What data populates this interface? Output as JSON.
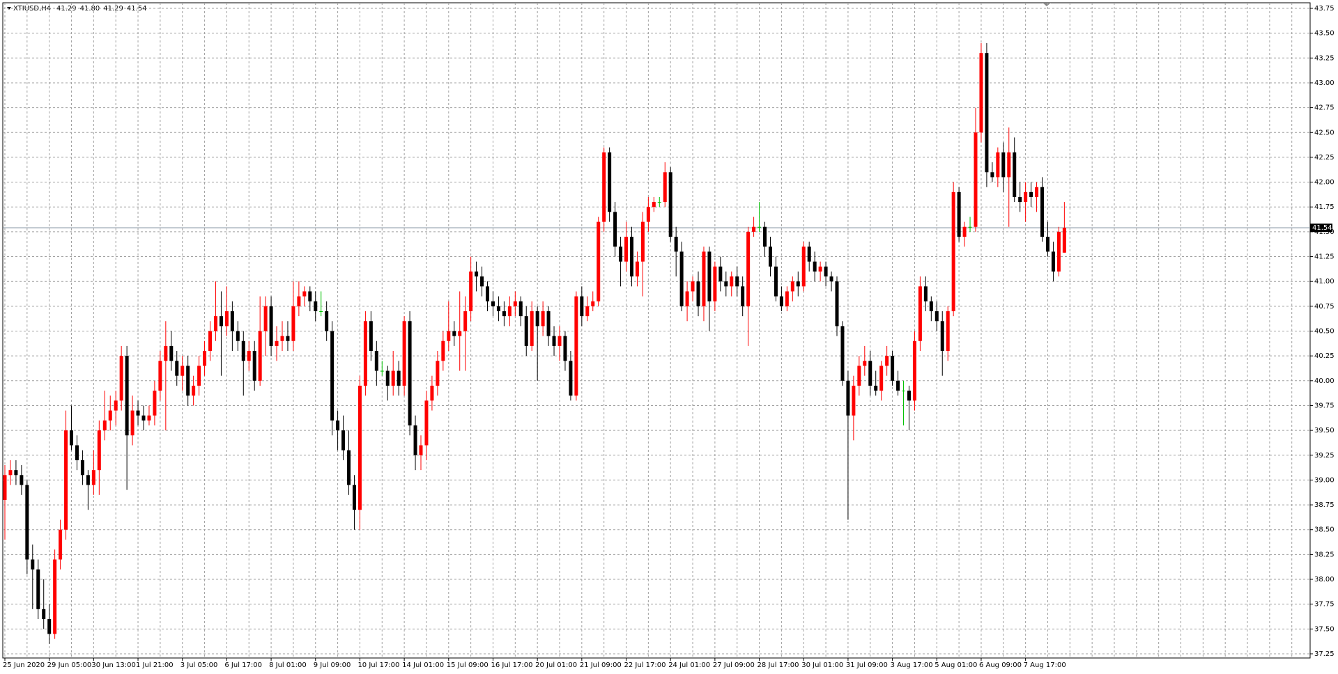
{
  "chart_data": {
    "type": "candlestick",
    "title": "XTIUSD,H4",
    "header_values": [
      "41.29",
      "41.80",
      "41.29",
      "41.54"
    ],
    "up_color": "#ff0000",
    "down_color": "#000000",
    "doji_color": "#00c000",
    "grid": true,
    "current_price": {
      "value": 41.54,
      "label": "41.54"
    },
    "ylim": [
      37.25,
      43.75
    ],
    "yticks": [
      37.25,
      {
        "value": 37.5,
        "label": "37.50"
      },
      37.75,
      {
        "value": 38,
        "label": "38.00"
      },
      38.25,
      {
        "value": 38.5,
        "label": "38.50"
      },
      38.75,
      {
        "value": 39,
        "label": "39.00"
      },
      39.25,
      {
        "value": 39.5,
        "label": "39.50"
      },
      39.75,
      {
        "value": 40,
        "label": "40.00"
      },
      40.25,
      {
        "value": 40.5,
        "label": "40.50"
      },
      40.75,
      {
        "value": 41,
        "label": "41.00"
      },
      41.25,
      {
        "value": 41.5,
        "label": "41.50"
      },
      41.75,
      {
        "value": 42,
        "label": "42.00"
      },
      42.25,
      {
        "value": 42.5,
        "label": "42.50"
      },
      42.75,
      {
        "value": 43,
        "label": "43.00"
      },
      43.25,
      {
        "value": 43.5,
        "label": "43.50"
      },
      43.75
    ],
    "xticks": [
      {
        "value": 0,
        "label": "25 Jun 2020"
      },
      {
        "value": 8,
        "label": "29 Jun 05:00"
      },
      {
        "value": 16,
        "label": "30 Jun 13:00"
      },
      {
        "value": 24,
        "label": "1 Jul 21:00"
      },
      {
        "value": 32,
        "label": "3 Jul 05:00"
      },
      {
        "value": 40,
        "label": "6 Jul 17:00"
      },
      {
        "value": 48,
        "label": "8 Jul 01:00"
      },
      {
        "value": 56,
        "label": "9 Jul 09:00"
      },
      {
        "value": 64,
        "label": "10 Jul 17:00"
      },
      {
        "value": 72,
        "label": "14 Jul 01:00"
      },
      {
        "value": 80,
        "label": "15 Jul 09:00"
      },
      {
        "value": 88,
        "label": "16 Jul 17:00"
      },
      {
        "value": 96,
        "label": "20 Jul 01:00"
      },
      {
        "value": 104,
        "label": "21 Jul 09:00"
      },
      {
        "value": 112,
        "label": "22 Jul 17:00"
      },
      {
        "value": 120,
        "label": "24 Jul 01:00"
      },
      {
        "value": 128,
        "label": "27 Jul 09:00"
      },
      {
        "value": 136,
        "label": "28 Jul 17:00"
      },
      {
        "value": 144,
        "label": "30 Jul 01:00"
      },
      {
        "value": 152,
        "label": "31 Jul 09:00"
      },
      {
        "value": 160,
        "label": "3 Aug 17:00"
      },
      {
        "value": 168,
        "label": "5 Aug 01:00"
      },
      {
        "value": 176,
        "label": "6 Aug 09:00"
      },
      {
        "value": 184,
        "label": "7 Aug 17:00"
      }
    ],
    "candles": [
      [
        38.8,
        39.15,
        38.4,
        39.05
      ],
      [
        39.05,
        39.2,
        38.95,
        39.1
      ],
      [
        39.1,
        39.2,
        38.95,
        39.05
      ],
      [
        39.05,
        39.15,
        38.85,
        38.95
      ],
      [
        38.95,
        39.0,
        38.05,
        38.2
      ],
      [
        38.2,
        38.35,
        37.7,
        38.1
      ],
      [
        38.1,
        38.2,
        37.6,
        37.7
      ],
      [
        37.7,
        38.0,
        37.5,
        37.6
      ],
      [
        37.6,
        37.75,
        37.35,
        37.45
      ],
      [
        37.45,
        38.3,
        37.4,
        38.2
      ],
      [
        38.2,
        38.6,
        38.1,
        38.5
      ],
      [
        38.5,
        39.7,
        38.4,
        39.5
      ],
      [
        39.5,
        39.75,
        39.3,
        39.35
      ],
      [
        39.35,
        39.45,
        39.1,
        39.2
      ],
      [
        39.2,
        39.3,
        38.95,
        39.05
      ],
      [
        39.05,
        39.1,
        38.7,
        38.95
      ],
      [
        38.95,
        39.3,
        38.85,
        39.1
      ],
      [
        39.1,
        39.6,
        38.85,
        39.5
      ],
      [
        39.5,
        39.9,
        39.4,
        39.6
      ],
      [
        39.6,
        39.85,
        39.5,
        39.7
      ],
      [
        39.7,
        39.9,
        39.55,
        39.8
      ],
      [
        39.8,
        40.35,
        39.7,
        40.25
      ],
      [
        40.25,
        40.35,
        38.9,
        39.45
      ],
      [
        39.45,
        39.85,
        39.35,
        39.7
      ],
      [
        39.7,
        39.8,
        39.55,
        39.65
      ],
      [
        39.65,
        39.75,
        39.5,
        39.6
      ],
      [
        39.6,
        39.75,
        39.55,
        39.65
      ],
      [
        39.65,
        40.0,
        39.55,
        39.9
      ],
      [
        39.9,
        40.3,
        39.8,
        40.2
      ],
      [
        40.2,
        40.6,
        39.5,
        40.35
      ],
      [
        40.35,
        40.5,
        40.1,
        40.2
      ],
      [
        40.2,
        40.3,
        39.95,
        40.05
      ],
      [
        40.05,
        40.25,
        39.9,
        40.15
      ],
      [
        40.15,
        40.25,
        39.75,
        39.85
      ],
      [
        39.85,
        40.05,
        39.75,
        39.95
      ],
      [
        39.95,
        40.25,
        39.85,
        40.15
      ],
      [
        40.15,
        40.4,
        40.05,
        40.3
      ],
      [
        40.3,
        40.6,
        40.2,
        40.5
      ],
      [
        40.5,
        41.0,
        40.4,
        40.65
      ],
      [
        40.65,
        40.9,
        40.05,
        40.55
      ],
      [
        40.55,
        40.95,
        40.45,
        40.7
      ],
      [
        40.7,
        40.8,
        40.3,
        40.5
      ],
      [
        40.5,
        40.6,
        40.3,
        40.4
      ],
      [
        40.4,
        40.5,
        39.85,
        40.2
      ],
      [
        40.2,
        40.4,
        40.1,
        40.3
      ],
      [
        40.3,
        40.4,
        39.9,
        40.0
      ],
      [
        40.0,
        40.85,
        39.95,
        40.5
      ],
      [
        40.5,
        40.85,
        40.25,
        40.75
      ],
      [
        40.75,
        40.85,
        40.25,
        40.35
      ],
      [
        40.35,
        40.55,
        40.2,
        40.4
      ],
      [
        40.4,
        40.6,
        40.3,
        40.45
      ],
      [
        40.45,
        40.6,
        40.3,
        40.4
      ],
      [
        40.4,
        41.0,
        40.3,
        40.75
      ],
      [
        40.75,
        41.0,
        40.65,
        40.85
      ],
      [
        40.85,
        40.95,
        40.75,
        40.9
      ],
      [
        40.9,
        40.95,
        40.7,
        40.8
      ],
      [
        40.8,
        40.9,
        40.6,
        40.7
      ],
      [
        40.7,
        40.9,
        40.65,
        40.7
      ],
      [
        40.7,
        40.8,
        40.4,
        40.5
      ],
      [
        40.5,
        40.6,
        39.45,
        39.6
      ],
      [
        39.6,
        39.7,
        39.3,
        39.5
      ],
      [
        39.5,
        39.65,
        39.2,
        39.3
      ],
      [
        39.3,
        39.5,
        38.85,
        38.95
      ],
      [
        38.95,
        39.05,
        38.5,
        38.7
      ],
      [
        38.7,
        40.05,
        38.5,
        39.95
      ],
      [
        39.95,
        40.7,
        39.85,
        40.6
      ],
      [
        40.6,
        40.7,
        40.2,
        40.3
      ],
      [
        40.3,
        40.4,
        39.95,
        40.1
      ],
      [
        40.1,
        40.2,
        40.05,
        40.1
      ],
      [
        40.1,
        40.15,
        39.8,
        39.95
      ],
      [
        39.95,
        40.3,
        39.85,
        40.1
      ],
      [
        40.1,
        40.2,
        39.85,
        39.95
      ],
      [
        39.95,
        40.65,
        39.85,
        40.6
      ],
      [
        40.6,
        40.7,
        39.45,
        39.55
      ],
      [
        39.55,
        39.65,
        39.1,
        39.25
      ],
      [
        39.25,
        39.45,
        39.1,
        39.35
      ],
      [
        39.35,
        39.9,
        39.2,
        39.8
      ],
      [
        39.8,
        40.05,
        39.7,
        39.95
      ],
      [
        39.95,
        40.3,
        39.85,
        40.2
      ],
      [
        40.2,
        40.5,
        40.1,
        40.4
      ],
      [
        40.4,
        40.8,
        40.3,
        40.5
      ],
      [
        40.5,
        40.6,
        40.35,
        40.45
      ],
      [
        40.45,
        40.9,
        40.1,
        40.5
      ],
      [
        40.5,
        40.85,
        40.1,
        40.7
      ],
      [
        40.7,
        41.25,
        40.6,
        41.1
      ],
      [
        41.1,
        41.2,
        40.9,
        41.05
      ],
      [
        41.05,
        41.15,
        40.85,
        40.95
      ],
      [
        40.95,
        41.0,
        40.7,
        40.8
      ],
      [
        40.8,
        40.9,
        40.65,
        40.75
      ],
      [
        40.75,
        40.85,
        40.6,
        40.7
      ],
      [
        40.7,
        40.8,
        40.55,
        40.65
      ],
      [
        40.65,
        40.85,
        40.55,
        40.75
      ],
      [
        40.75,
        40.9,
        40.65,
        40.8
      ],
      [
        40.8,
        40.85,
        40.55,
        40.65
      ],
      [
        40.65,
        40.75,
        40.25,
        40.35
      ],
      [
        40.35,
        40.8,
        40.3,
        40.7
      ],
      [
        40.7,
        40.75,
        40.0,
        40.55
      ],
      [
        40.55,
        40.8,
        40.45,
        40.7
      ],
      [
        40.7,
        40.75,
        40.35,
        40.45
      ],
      [
        40.45,
        40.55,
        40.25,
        40.35
      ],
      [
        40.35,
        40.55,
        40.2,
        40.45
      ],
      [
        40.45,
        40.5,
        40.1,
        40.2
      ],
      [
        40.2,
        40.3,
        39.8,
        39.85
      ],
      [
        39.85,
        40.9,
        39.8,
        40.85
      ],
      [
        40.85,
        40.95,
        40.55,
        40.65
      ],
      [
        40.65,
        40.85,
        40.6,
        40.75
      ],
      [
        40.75,
        40.9,
        40.7,
        40.8
      ],
      [
        40.8,
        41.65,
        40.75,
        41.6
      ],
      [
        41.6,
        42.35,
        41.5,
        42.3
      ],
      [
        42.3,
        42.35,
        41.6,
        41.7
      ],
      [
        41.7,
        41.8,
        41.25,
        41.35
      ],
      [
        41.35,
        41.45,
        40.95,
        41.2
      ],
      [
        41.2,
        41.6,
        41.1,
        41.45
      ],
      [
        41.45,
        41.55,
        40.95,
        41.05
      ],
      [
        41.05,
        41.3,
        40.95,
        41.2
      ],
      [
        41.2,
        41.7,
        40.85,
        41.6
      ],
      [
        41.6,
        41.85,
        41.5,
        41.75
      ],
      [
        41.75,
        41.85,
        41.7,
        41.8
      ],
      [
        41.8,
        41.85,
        41.75,
        41.8
      ],
      [
        41.8,
        42.2,
        41.75,
        42.1
      ],
      [
        42.1,
        42.15,
        41.4,
        41.45
      ],
      [
        41.45,
        41.55,
        41.05,
        41.3
      ],
      [
        41.3,
        41.4,
        40.7,
        40.75
      ],
      [
        40.75,
        41.0,
        40.6,
        40.9
      ],
      [
        40.9,
        41.05,
        40.8,
        41.0
      ],
      [
        41.0,
        41.1,
        40.65,
        40.75
      ],
      [
        40.75,
        41.35,
        40.6,
        41.3
      ],
      [
        41.3,
        41.35,
        40.5,
        40.8
      ],
      [
        40.8,
        41.2,
        40.7,
        41.15
      ],
      [
        41.15,
        41.25,
        40.9,
        41.0
      ],
      [
        41.0,
        41.1,
        40.85,
        40.95
      ],
      [
        40.95,
        41.1,
        40.85,
        41.05
      ],
      [
        41.05,
        41.15,
        40.85,
        40.95
      ],
      [
        40.95,
        41.05,
        40.65,
        40.75
      ],
      [
        40.75,
        41.55,
        40.35,
        41.5
      ],
      [
        41.5,
        41.65,
        41.45,
        41.55
      ],
      [
        41.55,
        41.8,
        41.5,
        41.55
      ],
      [
        41.55,
        41.6,
        41.25,
        41.35
      ],
      [
        41.35,
        41.45,
        41.05,
        41.15
      ],
      [
        41.15,
        41.25,
        40.8,
        40.85
      ],
      [
        40.85,
        40.95,
        40.7,
        40.75
      ],
      [
        40.75,
        40.95,
        40.7,
        40.9
      ],
      [
        40.9,
        41.05,
        40.8,
        41.0
      ],
      [
        41.0,
        41.1,
        40.85,
        40.95
      ],
      [
        40.95,
        41.4,
        40.9,
        41.35
      ],
      [
        41.35,
        41.4,
        41.1,
        41.2
      ],
      [
        41.2,
        41.3,
        41.0,
        41.1
      ],
      [
        41.1,
        41.2,
        41.0,
        41.15
      ],
      [
        41.15,
        41.2,
        40.95,
        41.05
      ],
      [
        41.05,
        41.1,
        40.9,
        41.0
      ],
      [
        41.0,
        41.05,
        40.45,
        40.55
      ],
      [
        40.55,
        40.6,
        39.95,
        40.0
      ],
      [
        40.0,
        40.1,
        38.6,
        39.65
      ],
      [
        39.65,
        40.05,
        39.4,
        39.95
      ],
      [
        39.95,
        40.25,
        39.85,
        40.15
      ],
      [
        40.15,
        40.35,
        40.05,
        40.2
      ],
      [
        40.2,
        40.3,
        39.85,
        39.95
      ],
      [
        39.95,
        40.1,
        39.85,
        39.9
      ],
      [
        39.9,
        40.2,
        39.8,
        40.15
      ],
      [
        40.15,
        40.35,
        40.05,
        40.25
      ],
      [
        40.25,
        40.3,
        39.95,
        40.0
      ],
      [
        40.0,
        40.1,
        39.85,
        39.9
      ],
      [
        39.9,
        40.0,
        39.55,
        39.9
      ],
      [
        39.9,
        39.95,
        39.5,
        39.8
      ],
      [
        39.8,
        40.5,
        39.7,
        40.4
      ],
      [
        40.4,
        41.05,
        40.3,
        40.95
      ],
      [
        40.95,
        41.05,
        40.7,
        40.8
      ],
      [
        40.8,
        40.85,
        40.6,
        40.7
      ],
      [
        40.7,
        40.8,
        40.5,
        40.6
      ],
      [
        40.6,
        40.7,
        40.05,
        40.3
      ],
      [
        40.3,
        40.75,
        40.2,
        40.7
      ],
      [
        40.7,
        42.0,
        40.65,
        41.9
      ],
      [
        41.9,
        41.95,
        41.4,
        41.45
      ],
      [
        41.45,
        41.6,
        41.35,
        41.55
      ],
      [
        41.55,
        41.65,
        41.5,
        41.55
      ],
      [
        41.55,
        42.75,
        41.5,
        42.5
      ],
      [
        42.5,
        43.4,
        42.4,
        43.3
      ],
      [
        43.3,
        43.4,
        41.95,
        42.1
      ],
      [
        42.1,
        42.2,
        42.0,
        42.05
      ],
      [
        42.05,
        42.35,
        41.95,
        42.3
      ],
      [
        42.3,
        42.4,
        41.9,
        42.05
      ],
      [
        42.05,
        42.55,
        41.55,
        42.3
      ],
      [
        42.3,
        42.45,
        41.8,
        41.85
      ],
      [
        41.85,
        42.0,
        41.7,
        41.8
      ],
      [
        41.8,
        42.0,
        41.6,
        41.9
      ],
      [
        41.9,
        42.0,
        41.75,
        41.85
      ],
      [
        41.85,
        42.0,
        41.7,
        41.95
      ],
      [
        41.95,
        42.05,
        41.4,
        41.45
      ],
      [
        41.45,
        41.6,
        41.25,
        41.3
      ],
      [
        41.3,
        41.4,
        41.0,
        41.1
      ],
      [
        41.1,
        41.55,
        41.05,
        41.5
      ],
      [
        41.29,
        41.8,
        41.29,
        41.54
      ]
    ]
  }
}
